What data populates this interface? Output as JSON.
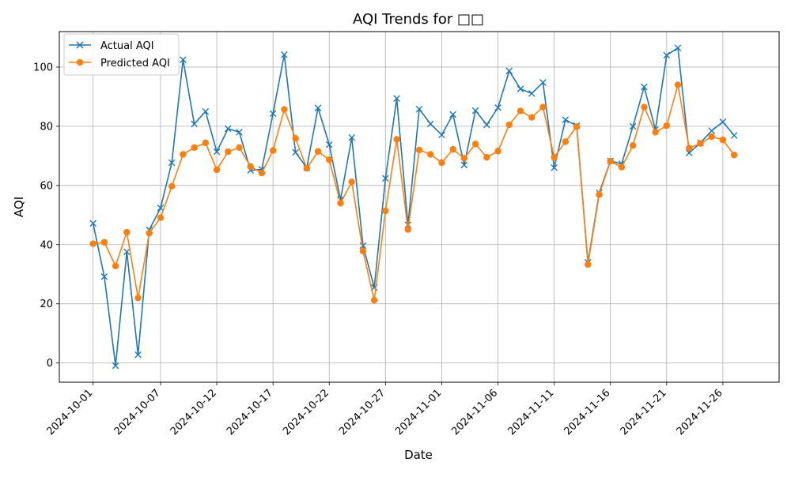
{
  "chart_data": {
    "type": "line",
    "title": "AQI Trends for □□",
    "xlabel": "Date",
    "ylabel": "AQI",
    "ylim": [
      -6.5,
      112
    ],
    "xlim": [
      "2024-09-28",
      "2024-12-01"
    ],
    "grid": true,
    "legend_position": "upper-left",
    "x_tick_labels": [
      "2024-10-01",
      "2024-10-07",
      "2024-10-12",
      "2024-10-17",
      "2024-10-22",
      "2024-10-27",
      "2024-11-01",
      "2024-11-06",
      "2024-11-11",
      "2024-11-16",
      "2024-11-21",
      "2024-11-26"
    ],
    "y_ticks": [
      0,
      20,
      40,
      60,
      80,
      100
    ],
    "series": [
      {
        "name": "Actual AQI",
        "color": "#1f77b4",
        "marker": "x",
        "start_date": "2024-10-01",
        "values": [
          47.2,
          29.2,
          -0.9,
          37.6,
          2.8,
          45.0,
          52.4,
          67.7,
          102.5,
          80.8,
          85.0,
          71.4,
          79.2,
          78.0,
          65.1,
          65.4,
          84.3,
          104.2,
          71.2,
          66.0,
          86.2,
          73.8,
          55.2,
          76.2,
          39.7,
          25.5,
          62.4,
          89.4,
          46.7,
          85.8,
          80.8,
          77.1,
          84.0,
          66.9,
          85.3,
          80.5,
          86.3,
          98.7,
          92.6,
          91.1,
          94.8,
          66.0,
          82.2,
          80.2,
          34.0,
          57.5,
          68.3,
          67.3,
          80.0,
          93.3,
          78.9,
          104.0,
          106.5,
          71.0,
          74.4,
          78.5,
          81.5,
          76.9
        ]
      },
      {
        "name": "Predicted AQI",
        "color": "#ff7f0e",
        "marker": "o",
        "start_date": "2024-10-01",
        "values": [
          40.3,
          40.8,
          32.8,
          44.2,
          22.0,
          43.9,
          49.1,
          59.7,
          70.5,
          72.8,
          74.4,
          65.3,
          71.4,
          72.8,
          66.4,
          64.2,
          71.8,
          85.7,
          75.9,
          65.8,
          71.5,
          68.7,
          54.0,
          61.2,
          37.8,
          21.2,
          51.4,
          75.6,
          45.1,
          72.0,
          70.5,
          67.7,
          72.2,
          69.2,
          74.0,
          69.5,
          71.6,
          80.5,
          85.2,
          83.0,
          86.5,
          69.5,
          74.8,
          79.9,
          33.3,
          56.9,
          68.2,
          66.2,
          73.5,
          86.5,
          78.0,
          80.2,
          94.0,
          72.6,
          74.2,
          76.5,
          75.4,
          70.3
        ]
      }
    ]
  }
}
